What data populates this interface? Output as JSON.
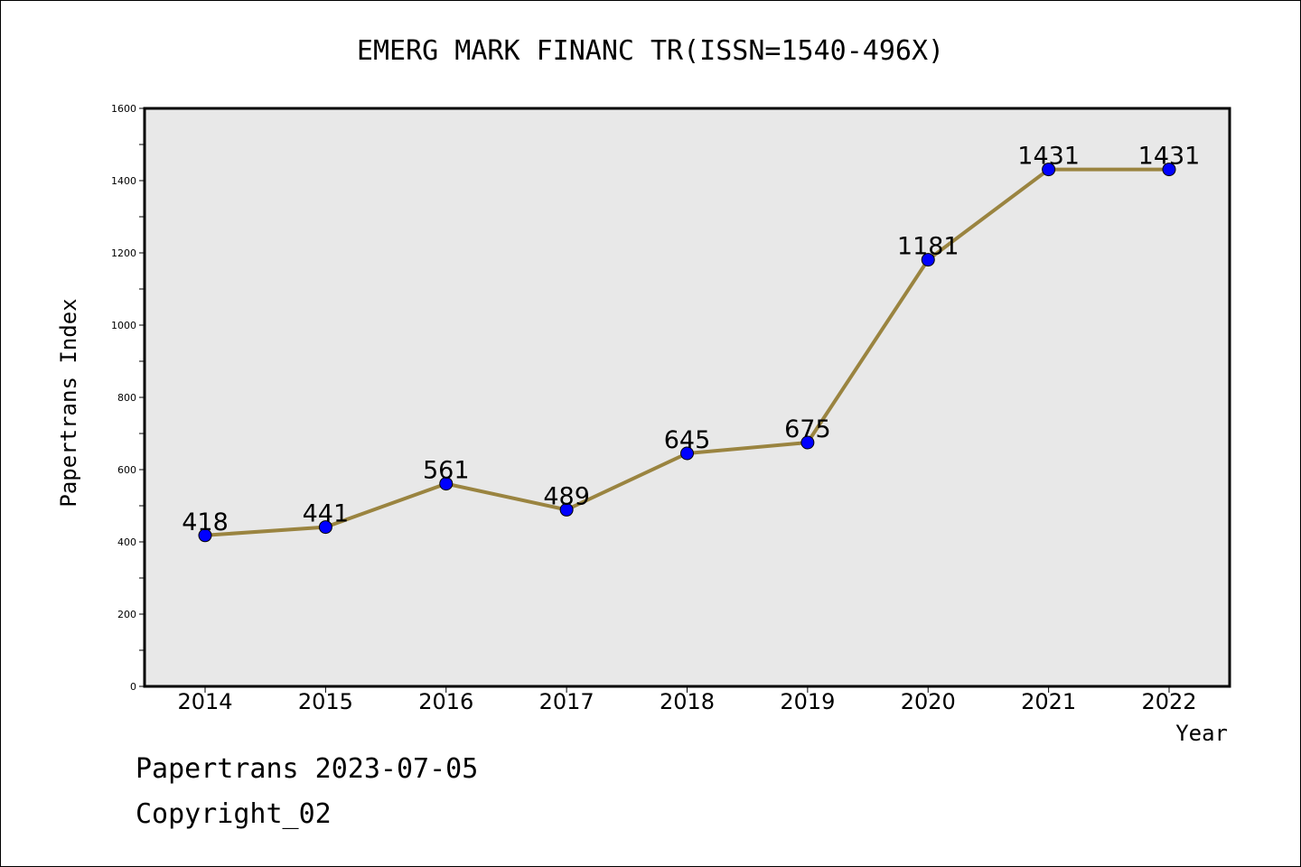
{
  "chart_data": {
    "type": "line",
    "title": "EMERG MARK FINANC TR(ISSN=1540-496X)",
    "xlabel": "Year",
    "ylabel": "Papertrans Index",
    "categories": [
      "2014",
      "2015",
      "2016",
      "2017",
      "2018",
      "2019",
      "2020",
      "2021",
      "2022"
    ],
    "values": [
      418,
      441,
      561,
      489,
      645,
      675,
      1181,
      1431,
      1431
    ],
    "ylim": [
      0,
      1600
    ],
    "yticks": [
      0,
      200,
      400,
      600,
      800,
      1000,
      1200,
      1400,
      1600
    ],
    "grid": false,
    "line_color": "#9a8440",
    "marker_color": "#0000ff",
    "plot_background": "#e8e8e8"
  },
  "footer": {
    "date_line": "Papertrans 2023-07-05",
    "copyright": "Copyright_02"
  }
}
